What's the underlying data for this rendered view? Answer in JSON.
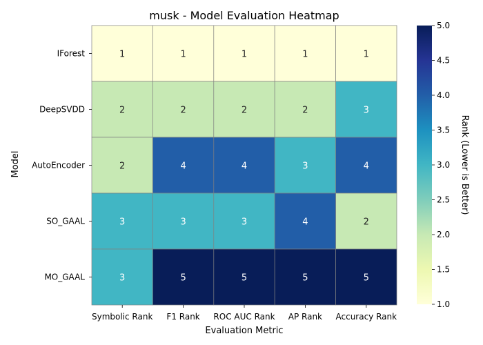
{
  "chart_data": {
    "type": "heatmap",
    "title": "musk - Model Evaluation Heatmap",
    "xlabel": "Evaluation Metric",
    "ylabel": "Model",
    "columns": [
      "Symbolic Rank",
      "F1 Rank",
      "ROC AUC Rank",
      "AP Rank",
      "Accuracy Rank"
    ],
    "rows": [
      "IForest",
      "DeepSVDD",
      "AutoEncoder",
      "SO_GAAL",
      "MO_GAAL"
    ],
    "values": [
      [
        1,
        1,
        1,
        1,
        1
      ],
      [
        2,
        2,
        2,
        2,
        3
      ],
      [
        2,
        4,
        4,
        3,
        4
      ],
      [
        3,
        3,
        3,
        4,
        2
      ],
      [
        3,
        5,
        5,
        5,
        5
      ]
    ],
    "colorbar": {
      "label": "Rank (Lower is Better)",
      "range": [
        1.0,
        5.0
      ],
      "ticks": [
        "1.0",
        "1.5",
        "2.0",
        "2.5",
        "3.0",
        "3.5",
        "4.0",
        "4.5",
        "5.0"
      ],
      "colormap": "YlGnBu"
    },
    "colors": {
      "1": "#ffffd9",
      "2": "#c7e9b4",
      "3": "#41b6c4",
      "4": "#225ea8",
      "5": "#081d58",
      "grid": "#808080"
    }
  }
}
